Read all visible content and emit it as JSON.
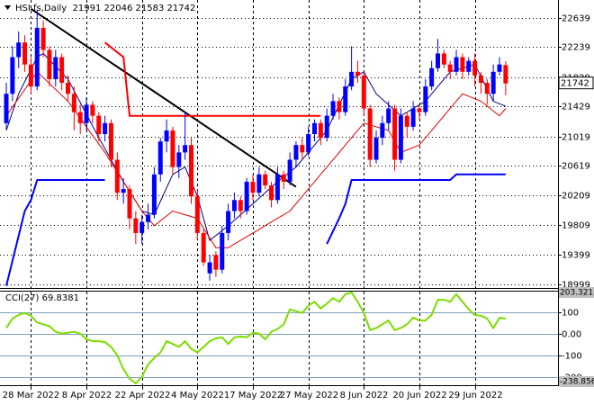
{
  "chart_data": [
    {
      "type": "candlestick",
      "title": "HSI.fs,Daily  21991 22046 21583 21742",
      "categories": [
        null,
        null,
        null,
        null,
        "28 Mar 2022",
        null,
        null,
        null,
        null,
        null,
        null,
        null,
        null,
        "8 Apr 2022",
        null,
        null,
        null,
        null,
        null,
        null,
        null,
        null,
        "22 Apr 2022",
        null,
        null,
        null,
        null,
        null,
        null,
        null,
        null,
        "4 May 2022",
        null,
        null,
        null,
        null,
        null,
        null,
        null,
        null,
        "17 May 2022",
        null,
        null,
        null,
        null,
        null,
        null,
        null,
        null,
        "27 May 2022",
        null,
        null,
        null,
        null,
        null,
        null,
        null,
        null,
        "8 Jun 2022",
        null,
        null,
        null,
        null,
        null,
        null,
        null,
        null,
        "20 Jun 2022",
        null,
        null,
        null,
        null,
        null,
        null,
        null,
        null,
        "29 Jun 2022",
        null,
        null,
        null,
        null,
        null
      ],
      "open": [
        21200,
        21600,
        22100,
        22300,
        22000,
        21700,
        22500,
        22200,
        21800,
        22100,
        21750,
        21600,
        21350,
        21200,
        21450,
        21300,
        21050,
        21200,
        20700,
        20250,
        20300,
        19900,
        19700,
        19850,
        19950,
        20500,
        20950,
        21100,
        20600,
        20800,
        20900,
        20200,
        19700,
        19150,
        19400,
        19200,
        19700,
        20000,
        20150,
        20000,
        20400,
        20250,
        20500,
        20350,
        20150,
        20500,
        20400,
        20700,
        20900,
        20800,
        21050,
        21200,
        21000,
        21300,
        21500,
        21350,
        21700,
        21900,
        21850,
        21400,
        20700,
        21000,
        21200,
        21400,
        20700,
        21300,
        21150,
        21400,
        21350,
        21700,
        21950,
        22150,
        22000,
        21900,
        22100,
        21900,
        22050,
        21850,
        21750,
        21600,
        21900,
        21991
      ],
      "high": [
        21750,
        22250,
        22450,
        22400,
        22100,
        22750,
        22600,
        22250,
        22200,
        22150,
        21850,
        21700,
        21450,
        21550,
        21500,
        21350,
        21300,
        21250,
        20800,
        20450,
        20350,
        20000,
        19950,
        20100,
        20600,
        21000,
        21250,
        21150,
        20900,
        21350,
        21000,
        20300,
        19750,
        19400,
        19450,
        19800,
        20100,
        20250,
        20200,
        20450,
        20500,
        20600,
        20550,
        20400,
        20600,
        20550,
        20800,
        20950,
        21000,
        21150,
        21250,
        21250,
        21400,
        21600,
        21550,
        21800,
        22250,
        22050,
        21900,
        21450,
        21100,
        21300,
        21500,
        21450,
        21400,
        21350,
        21500,
        21450,
        21800,
        22050,
        22350,
        22200,
        22050,
        22200,
        22150,
        22100,
        22150,
        21900,
        21800,
        22000,
        22100,
        22046
      ],
      "low": [
        21100,
        21500,
        21950,
        21900,
        21600,
        21650,
        22100,
        21700,
        21700,
        21650,
        21500,
        21100,
        21050,
        21100,
        21200,
        20950,
        20950,
        20600,
        20150,
        20100,
        19750,
        19550,
        19550,
        19750,
        19900,
        20400,
        20800,
        20500,
        20450,
        20700,
        20100,
        19600,
        19250,
        19050,
        19100,
        19150,
        19600,
        19900,
        19900,
        19950,
        20150,
        20200,
        20300,
        20050,
        20100,
        20300,
        20350,
        20600,
        20700,
        20750,
        20950,
        20900,
        20950,
        21250,
        21250,
        21300,
        21650,
        21750,
        21300,
        20600,
        20650,
        20900,
        21100,
        20550,
        20650,
        21000,
        21100,
        21250,
        21300,
        21650,
        21900,
        21950,
        21800,
        21850,
        21800,
        21850,
        21700,
        21600,
        21450,
        21500,
        21850,
        21583
      ],
      "close": [
        21600,
        22100,
        22300,
        22000,
        21700,
        22500,
        22200,
        21800,
        22100,
        21750,
        21600,
        21350,
        21200,
        21450,
        21300,
        21050,
        21200,
        20700,
        20250,
        20300,
        19900,
        19700,
        19850,
        19950,
        20500,
        20950,
        21100,
        20600,
        20800,
        20900,
        20200,
        19700,
        19300,
        19300,
        19200,
        19700,
        20000,
        20150,
        20000,
        20400,
        20250,
        20500,
        20350,
        20150,
        20500,
        20400,
        20700,
        20900,
        20800,
        21050,
        21200,
        21000,
        21300,
        21500,
        21350,
        21700,
        21900,
        21850,
        21400,
        20700,
        21000,
        21200,
        21400,
        20700,
        21300,
        21150,
        21400,
        21350,
        21700,
        21950,
        22150,
        22000,
        21900,
        22100,
        21900,
        22050,
        21850,
        21750,
        21600,
        21900,
        22000,
        21742
      ],
      "up_color": "#0000ff",
      "down_color": "#ff0000",
      "ylim": [
        18950,
        22880
      ],
      "yticks": [
        22639,
        22239,
        21829,
        21429,
        21019,
        20619,
        20209,
        19809,
        19399,
        18999
      ],
      "grid": true,
      "overlays": [
        {
          "color": "#000080",
          "x": [
            0,
            2,
            5,
            6,
            10,
            15,
            19,
            22,
            24,
            27,
            29,
            31,
            33,
            36,
            40,
            44,
            47,
            52,
            56,
            58,
            60,
            62,
            64,
            68,
            72,
            76,
            79,
            81
          ],
          "values": [
            21100,
            21600,
            22100,
            22150,
            21800,
            21000,
            20400,
            20000,
            19950,
            20500,
            20600,
            20200,
            19600,
            19800,
            20100,
            20400,
            20600,
            21100,
            21800,
            21900,
            21600,
            21450,
            21300,
            21500,
            21900,
            22000,
            21500,
            21430
          ]
        },
        {
          "color": "#e00000",
          "x": [
            0,
            5,
            10,
            16,
            22,
            24,
            27,
            31,
            34,
            36,
            40,
            44,
            46,
            49,
            52,
            56,
            58,
            62,
            64,
            67,
            70,
            74,
            77,
            80,
            81
          ],
          "values": [
            21300,
            21900,
            21500,
            20800,
            20000,
            19800,
            20000,
            19900,
            19500,
            19500,
            19700,
            19900,
            20000,
            20300,
            20600,
            21000,
            21200,
            21100,
            20800,
            20900,
            21200,
            21600,
            21500,
            21300,
            21400
          ]
        },
        {
          "color": "#000000",
          "x": [
            4,
            47
          ],
          "values": [
            22760,
            20330
          ]
        },
        {
          "color": "#ff0000",
          "x": [
            16,
            19,
            20,
            51
          ],
          "values": [
            22300,
            22100,
            21300,
            21300
          ]
        },
        {
          "color": "#0000ff",
          "x": [
            0,
            3,
            4,
            5,
            16
          ],
          "values": [
            18980,
            20000,
            20150,
            20424,
            20424
          ]
        },
        {
          "color": "#0000ff",
          "x": [
            52,
            54,
            55,
            56,
            72,
            73,
            81
          ],
          "values": [
            19550,
            19900,
            20100,
            20424,
            20424,
            20500,
            20500
          ]
        }
      ]
    },
    {
      "type": "line",
      "title": "CCI(27) 69.8381",
      "color": "#7cdc00",
      "values": [
        26,
        70,
        87,
        96,
        83,
        52,
        43,
        35,
        9,
        0,
        4,
        9,
        0,
        -26,
        -35,
        -35,
        -39,
        -61,
        -100,
        -165,
        -209,
        -230,
        -200,
        -143,
        -113,
        -87,
        -35,
        -48,
        -61,
        -35,
        -70,
        -87,
        -61,
        -35,
        -22,
        -17,
        -48,
        -17,
        -13,
        -17,
        4,
        0,
        -26,
        9,
        22,
        43,
        113,
        104,
        96,
        130,
        148,
        117,
        139,
        165,
        148,
        183,
        191,
        148,
        96,
        17,
        26,
        43,
        61,
        17,
        26,
        43,
        74,
        61,
        61,
        87,
        157,
        157,
        148,
        183,
        148,
        113,
        87,
        83,
        70,
        26,
        74,
        69.8381
      ],
      "ylim": [
        -238.856,
        203.3217
      ],
      "yticks": [
        100,
        {
          "value": 0,
          "label": "0.00"
        },
        -100,
        -200
      ]
    }
  ]
}
